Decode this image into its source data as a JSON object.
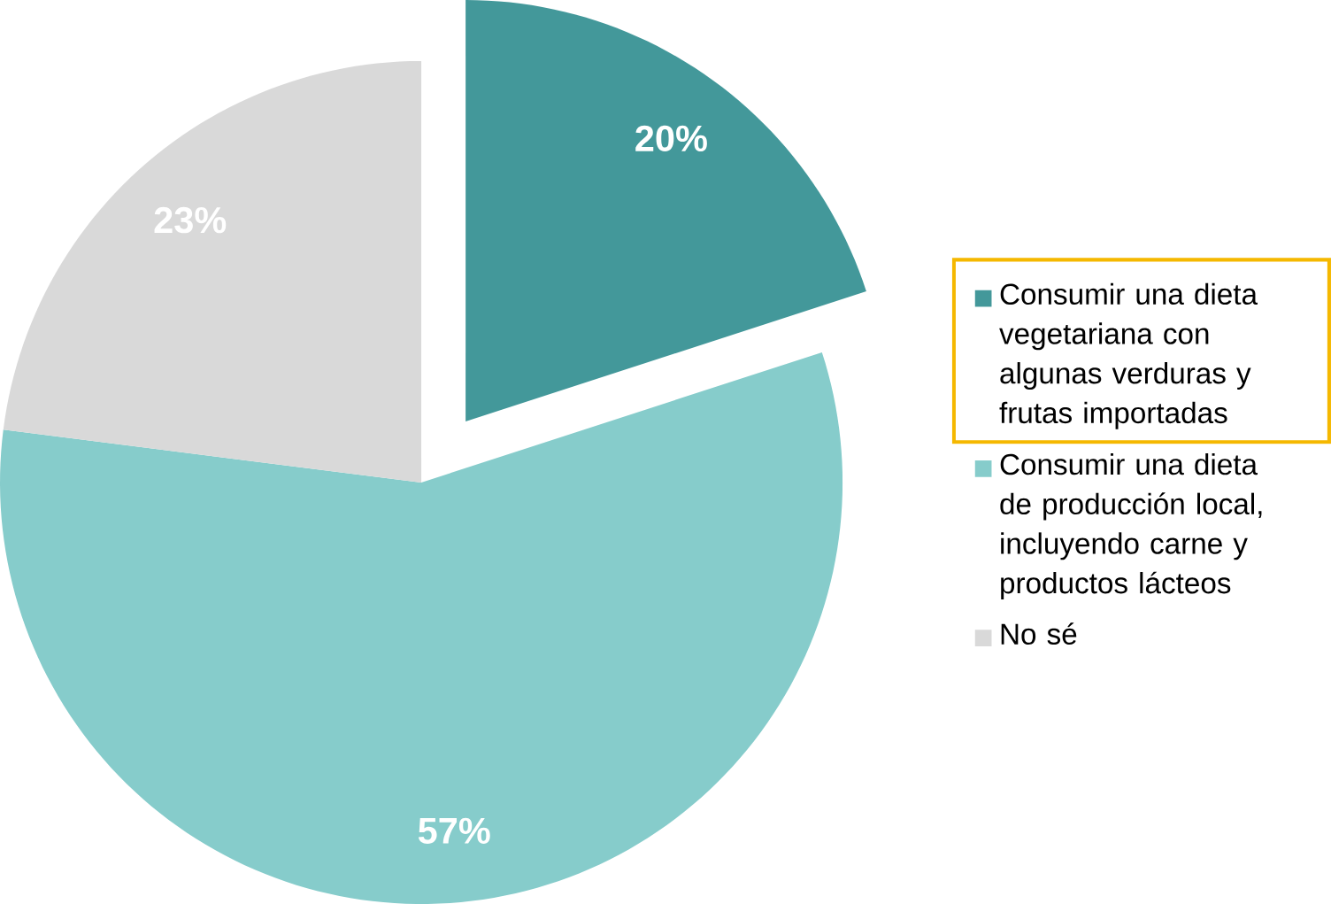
{
  "chart_data": {
    "type": "pie",
    "categories": [
      "Consumir una dieta vegetariana con algunas verduras y frutas importadas",
      "Consumir una dieta de producción local, incluyendo carne y productos lácteos",
      "No sé"
    ],
    "values": [
      20,
      57,
      23
    ],
    "colors": [
      "#43989a",
      "#86cccb",
      "#d9d9d9"
    ],
    "value_labels": [
      "20%",
      "57%",
      "23%"
    ],
    "legend": "right"
  }
}
